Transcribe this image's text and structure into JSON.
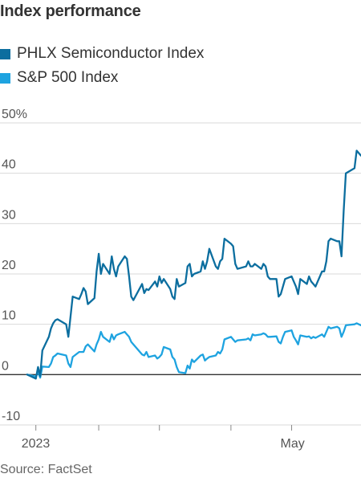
{
  "title": "Index performance",
  "source": "Source: FactSet",
  "colors": {
    "semiconductor": "#0c6e9f",
    "sp500": "#1ea3e0",
    "zero_line": "#333333",
    "grid": "#d9d9d9"
  },
  "chart_data": {
    "type": "line",
    "title": "Index performance",
    "legend": "top-left",
    "grid": true,
    "ylim": [
      -10,
      50
    ],
    "yticks": [
      50,
      40,
      30,
      20,
      10,
      0,
      -10
    ],
    "ytick_labels": [
      "50%",
      "40",
      "30",
      "20",
      "10",
      "0",
      "-10"
    ],
    "xlim": [
      "2022-12-30",
      "2023-06-02"
    ],
    "xticks": [
      "2023-01-03",
      "2023-02-01",
      "2023-03-01",
      "2023-04-03",
      "2023-05-01"
    ],
    "xtick_labels": [
      "2023",
      "",
      "",
      "",
      "May"
    ],
    "series": [
      {
        "name": "PHLX Semiconductor Index",
        "color": "#0c6e9f",
        "x": [
          "2022-12-30",
          "2023-01-03",
          "2023-01-04",
          "2023-01-05",
          "2023-01-06",
          "2023-01-09",
          "2023-01-10",
          "2023-01-11",
          "2023-01-12",
          "2023-01-13",
          "2023-01-17",
          "2023-01-18",
          "2023-01-19",
          "2023-01-20",
          "2023-01-23",
          "2023-01-24",
          "2023-01-25",
          "2023-01-26",
          "2023-01-27",
          "2023-01-30",
          "2023-01-31",
          "2023-02-01",
          "2023-02-02",
          "2023-02-03",
          "2023-02-06",
          "2023-02-07",
          "2023-02-08",
          "2023-02-09",
          "2023-02-10",
          "2023-02-13",
          "2023-02-14",
          "2023-02-15",
          "2023-02-16",
          "2023-02-17",
          "2023-02-21",
          "2023-02-22",
          "2023-02-23",
          "2023-02-24",
          "2023-02-27",
          "2023-02-28",
          "2023-03-01",
          "2023-03-02",
          "2023-03-03",
          "2023-03-06",
          "2023-03-07",
          "2023-03-08",
          "2023-03-09",
          "2023-03-10",
          "2023-03-13",
          "2023-03-14",
          "2023-03-15",
          "2023-03-16",
          "2023-03-17",
          "2023-03-20",
          "2023-03-21",
          "2023-03-22",
          "2023-03-23",
          "2023-03-24",
          "2023-03-27",
          "2023-03-28",
          "2023-03-29",
          "2023-03-30",
          "2023-03-31",
          "2023-04-03",
          "2023-04-04",
          "2023-04-05",
          "2023-04-06",
          "2023-04-10",
          "2023-04-11",
          "2023-04-12",
          "2023-04-13",
          "2023-04-14",
          "2023-04-17",
          "2023-04-18",
          "2023-04-19",
          "2023-04-20",
          "2023-04-21",
          "2023-04-24",
          "2023-04-25",
          "2023-04-26",
          "2023-04-27",
          "2023-04-28",
          "2023-05-01",
          "2023-05-02",
          "2023-05-03",
          "2023-05-04",
          "2023-05-05",
          "2023-05-08",
          "2023-05-09",
          "2023-05-10",
          "2023-05-11",
          "2023-05-12",
          "2023-05-15",
          "2023-05-16",
          "2023-05-17",
          "2023-05-18",
          "2023-05-19",
          "2023-05-22",
          "2023-05-23",
          "2023-05-24",
          "2023-05-25",
          "2023-05-26",
          "2023-05-30",
          "2023-05-31",
          "2023-06-01",
          "2023-06-02"
        ],
        "y": [
          0,
          -0.8,
          1.5,
          -0.3,
          4.8,
          7.5,
          9.2,
          10.2,
          10.8,
          11.0,
          10.0,
          7.5,
          11.5,
          15.5,
          15.0,
          16.0,
          17.2,
          16.5,
          14.0,
          15.2,
          20.5,
          24.0,
          20.0,
          22.0,
          20.0,
          23.5,
          21.0,
          19.5,
          21.5,
          23.5,
          23.0,
          19.5,
          15.5,
          14.8,
          18.0,
          16.2,
          17.0,
          16.8,
          18.5,
          17.5,
          19.5,
          18.2,
          19.0,
          17.0,
          15.5,
          15.0,
          19.0,
          17.5,
          18.2,
          21.5,
          22.0,
          19.5,
          20.0,
          20.5,
          22.5,
          21.0,
          22.5,
          25.0,
          21.5,
          21.0,
          22.5,
          23.0,
          27.0,
          26.0,
          25.5,
          22.0,
          21.0,
          21.5,
          22.5,
          21.5,
          21.5,
          22.0,
          21.0,
          22.0,
          21.5,
          19.5,
          19.0,
          19.0,
          15.5,
          16.0,
          17.5,
          19.0,
          19.5,
          18.5,
          17.5,
          16.0,
          19.0,
          18.0,
          19.5,
          18.5,
          18.0,
          17.5,
          20.5,
          20.5,
          22.5,
          26.5,
          27.0,
          26.5,
          26.5,
          23.5,
          32.5,
          40.0,
          41.0,
          44.5,
          44.0,
          43.5
        ]
      },
      {
        "name": "S&P 500 Index",
        "color": "#1ea3e0",
        "x": [
          "2022-12-30",
          "2023-01-03",
          "2023-01-04",
          "2023-01-05",
          "2023-01-06",
          "2023-01-09",
          "2023-01-10",
          "2023-01-11",
          "2023-01-12",
          "2023-01-13",
          "2023-01-17",
          "2023-01-18",
          "2023-01-19",
          "2023-01-20",
          "2023-01-23",
          "2023-01-24",
          "2023-01-25",
          "2023-01-26",
          "2023-01-27",
          "2023-01-30",
          "2023-01-31",
          "2023-02-01",
          "2023-02-02",
          "2023-02-03",
          "2023-02-06",
          "2023-02-07",
          "2023-02-08",
          "2023-02-09",
          "2023-02-10",
          "2023-02-13",
          "2023-02-14",
          "2023-02-15",
          "2023-02-16",
          "2023-02-17",
          "2023-02-21",
          "2023-02-22",
          "2023-02-23",
          "2023-02-24",
          "2023-02-27",
          "2023-02-28",
          "2023-03-01",
          "2023-03-02",
          "2023-03-03",
          "2023-03-06",
          "2023-03-07",
          "2023-03-08",
          "2023-03-09",
          "2023-03-10",
          "2023-03-13",
          "2023-03-14",
          "2023-03-15",
          "2023-03-16",
          "2023-03-17",
          "2023-03-20",
          "2023-03-21",
          "2023-03-22",
          "2023-03-23",
          "2023-03-24",
          "2023-03-27",
          "2023-03-28",
          "2023-03-29",
          "2023-03-30",
          "2023-03-31",
          "2023-04-03",
          "2023-04-04",
          "2023-04-05",
          "2023-04-06",
          "2023-04-10",
          "2023-04-11",
          "2023-04-12",
          "2023-04-13",
          "2023-04-14",
          "2023-04-17",
          "2023-04-18",
          "2023-04-19",
          "2023-04-20",
          "2023-04-21",
          "2023-04-24",
          "2023-04-25",
          "2023-04-26",
          "2023-04-27",
          "2023-04-28",
          "2023-05-01",
          "2023-05-02",
          "2023-05-03",
          "2023-05-04",
          "2023-05-05",
          "2023-05-08",
          "2023-05-09",
          "2023-05-10",
          "2023-05-11",
          "2023-05-12",
          "2023-05-15",
          "2023-05-16",
          "2023-05-17",
          "2023-05-18",
          "2023-05-19",
          "2023-05-22",
          "2023-05-23",
          "2023-05-24",
          "2023-05-25",
          "2023-05-26",
          "2023-05-30",
          "2023-05-31",
          "2023-06-01",
          "2023-06-02"
        ],
        "y": [
          0,
          -0.4,
          0.5,
          -0.6,
          1.6,
          1.5,
          2.2,
          3.5,
          3.8,
          4.2,
          3.8,
          2.2,
          1.5,
          3.5,
          4.5,
          4.5,
          4.5,
          5.6,
          6.0,
          4.6,
          6.0,
          7.0,
          8.5,
          7.5,
          6.5,
          8.0,
          7.0,
          7.8,
          8.0,
          8.5,
          8.0,
          7.5,
          6.5,
          6.0,
          4.0,
          3.8,
          4.5,
          3.5,
          3.8,
          3.2,
          3.5,
          4.0,
          5.5,
          5.0,
          3.5,
          3.0,
          1.5,
          0.5,
          0.3,
          1.8,
          1.2,
          3.0,
          2.5,
          3.8,
          4.0,
          2.8,
          3.2,
          3.5,
          3.8,
          4.5,
          4.2,
          5.0,
          7.0,
          7.5,
          7.0,
          6.5,
          6.8,
          7.0,
          7.2,
          6.8,
          8.0,
          7.8,
          8.0,
          8.2,
          8.0,
          7.5,
          7.5,
          7.6,
          6.5,
          6.2,
          7.5,
          8.5,
          8.8,
          7.5,
          6.8,
          6.0,
          7.8,
          7.5,
          7.6,
          7.2,
          7.5,
          7.3,
          8.0,
          7.5,
          8.5,
          9.5,
          9.2,
          9.5,
          9.2,
          7.5,
          8.5,
          9.8,
          10.0,
          10.2,
          10.0,
          9.8
        ]
      }
    ]
  }
}
